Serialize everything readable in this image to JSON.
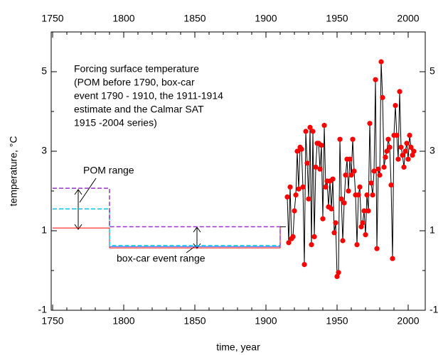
{
  "chart_data": {
    "type": "line",
    "xlabel": "time, year",
    "ylabel": "temperature, °C",
    "annotation": [
      "Forcing surface temperature",
      "(POM before 1790, box-car",
      "event 1790 - 1910, the 1911-1914",
      "estimate and the Calmar SAT",
      "1915 -2004 series)"
    ],
    "labels": [
      "POM range",
      "box-car event range"
    ],
    "xlim": [
      1749,
      2012
    ],
    "xticks": [
      1750,
      1800,
      1850,
      1900,
      1950,
      2000
    ],
    "ylim": [
      -1,
      6
    ],
    "yticks": [
      -1,
      1,
      3,
      5
    ],
    "series": [
      {
        "color": "#ff0000",
        "dash": false,
        "x": [
          1750,
          1790,
          1790,
          1910,
          1910
        ],
        "values": [
          1.07,
          1.07,
          0.57,
          0.57,
          1.1
        ]
      },
      {
        "color": "#3366ff",
        "dash": false,
        "x": [
          1790,
          1910
        ],
        "values": [
          0.6,
          0.6
        ]
      },
      {
        "color": "#00c8e6",
        "dash": true,
        "x": [
          1750,
          1790,
          1790,
          1910
        ],
        "values": [
          1.55,
          1.55,
          0.63,
          0.63
        ]
      },
      {
        "color": "#9933cc",
        "dash": true,
        "x": [
          1750,
          1790,
          1790,
          1910,
          1910
        ],
        "values": [
          2.07,
          2.07,
          1.1,
          1.1,
          0.62
        ]
      },
      {
        "color": "#000000",
        "dash": false,
        "x": [
          1910,
          1914
        ],
        "values": [
          1.1,
          1.1
        ]
      },
      {
        "color": "#000000",
        "marker_color": "#ff0000",
        "dash": false,
        "x": [
          1915,
          1916,
          1917,
          1918,
          1919,
          1920,
          1921,
          1922,
          1923,
          1924,
          1925,
          1926,
          1927,
          1928,
          1929,
          1930,
          1931,
          1932,
          1933,
          1934,
          1935,
          1936,
          1937,
          1938,
          1939,
          1940,
          1941,
          1942,
          1943,
          1944,
          1945,
          1946,
          1947,
          1948,
          1949,
          1950,
          1951,
          1952,
          1953,
          1954,
          1955,
          1956,
          1957,
          1958,
          1959,
          1960,
          1961,
          1962,
          1963,
          1964,
          1965,
          1966,
          1967,
          1968,
          1969,
          1970,
          1971,
          1972,
          1973,
          1974,
          1975,
          1976,
          1977,
          1978,
          1979,
          1980,
          1981,
          1982,
          1983,
          1984,
          1985,
          1986,
          1987,
          1988,
          1989,
          1990,
          1991,
          1992,
          1993,
          1994,
          1995,
          1996,
          1997,
          1998,
          1999,
          2000,
          2001,
          2002,
          2003,
          2004
        ],
        "values": [
          1.85,
          0.7,
          2.1,
          0.8,
          0.85,
          1.5,
          1.9,
          3.0,
          2.05,
          3.1,
          3.05,
          2.1,
          0.15,
          3.5,
          2.7,
          1.8,
          3.6,
          0.65,
          3.5,
          0.85,
          2.6,
          3.2,
          3.2,
          2.55,
          3.15,
          1.3,
          3.65,
          2.1,
          2.25,
          1.6,
          2.25,
          1.55,
          2.3,
          0.95,
          1.2,
          -0.15,
          -0.05,
          3.3,
          1.8,
          0.75,
          1.7,
          2.4,
          2.8,
          2.0,
          2.8,
          2.4,
          3.3,
          2.5,
          1.9,
          0.65,
          1.9,
          2.1,
          1.1,
          1.2,
          1.5,
          0.9,
          1.9,
          1.5,
          3.7,
          2.2,
          1.9,
          2.5,
          4.8,
          0.55,
          2.55,
          2.4,
          5.25,
          4.35,
          2.6,
          2.85,
          3.0,
          3.3,
          3.1,
          2.15,
          0.3,
          3.4,
          4.15,
          3.4,
          2.8,
          4.5,
          3.1,
          2.9,
          2.6,
          3.0,
          3.2,
          2.8,
          3.4,
          3.1,
          2.9,
          3.0
        ]
      }
    ]
  }
}
